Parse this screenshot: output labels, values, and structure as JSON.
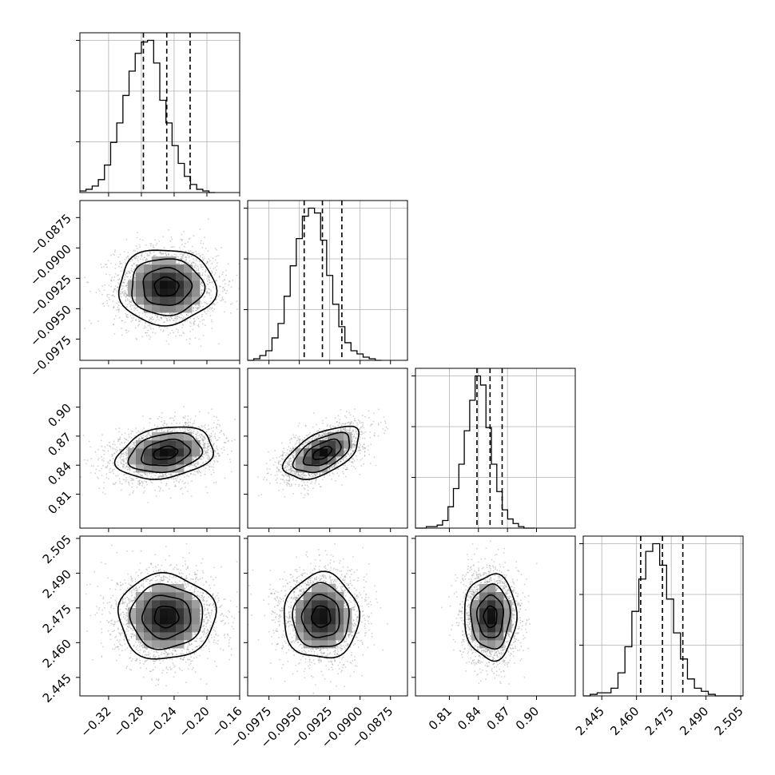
{
  "chart_data": {
    "type": "corner",
    "title": "",
    "parameters": [
      {
        "id": "p0",
        "label": "",
        "range": [
          -0.355,
          -0.16
        ],
        "ticks": [
          -0.32,
          -0.28,
          -0.24,
          -0.2,
          -0.16
        ],
        "tick_labels": [
          "−0.32",
          "−0.28",
          "−0.24",
          "−0.20",
          "−0.16"
        ],
        "quantiles": [
          -0.2775,
          -0.249,
          -0.2205
        ]
      },
      {
        "id": "p1",
        "label": "",
        "range": [
          -0.09925,
          -0.0861
        ],
        "ticks": [
          -0.0975,
          -0.095,
          -0.0925,
          -0.09,
          -0.0875
        ],
        "tick_labels": [
          "−0.0975",
          "−0.0950",
          "−0.0925",
          "−0.0900",
          "−0.0875"
        ],
        "quantiles": [
          -0.0946,
          -0.0931,
          -0.0915
        ]
      },
      {
        "id": "p2",
        "label": "",
        "range": [
          0.775,
          0.94
        ],
        "ticks": [
          0.81,
          0.84,
          0.87,
          0.9
        ],
        "tick_labels": [
          "0.81",
          "0.84",
          "0.87",
          "0.90"
        ],
        "quantiles": [
          0.8385,
          0.852,
          0.8645
        ]
      },
      {
        "id": "p3",
        "label": "",
        "range": [
          2.437,
          2.506
        ],
        "ticks": [
          2.445,
          2.46,
          2.475,
          2.49,
          2.505
        ],
        "tick_labels": [
          "2.445",
          "2.460",
          "2.475",
          "2.490",
          "2.505"
        ],
        "quantiles": [
          2.4618,
          2.4712,
          2.48
        ]
      }
    ],
    "histograms": [
      {
        "param": "p0",
        "bin_start": -0.355,
        "bin_width": 0.0075,
        "counts": [
          1,
          2,
          4,
          8,
          17,
          31,
          43,
          60,
          75,
          86,
          93,
          94,
          80,
          57,
          43,
          29,
          18,
          10,
          5,
          2,
          1,
          0
        ]
      },
      {
        "param": "p1",
        "bin_start": -0.09925,
        "bin_width": 0.0005,
        "counts": [
          0,
          1,
          3,
          6,
          14,
          23,
          40,
          59,
          76,
          90,
          95,
          92,
          75,
          53,
          35,
          21,
          11,
          6,
          4,
          2,
          1,
          0
        ]
      },
      {
        "param": "p2",
        "bin_start": 0.775,
        "bin_width": 0.0056,
        "counts": [
          0,
          0,
          1,
          1,
          2,
          5,
          14,
          26,
          42,
          64,
          84,
          100,
          94,
          66,
          42,
          24,
          12,
          6,
          3,
          1,
          0,
          0
        ]
      },
      {
        "param": "p3",
        "bin_start": 2.437,
        "bin_width": 0.003,
        "counts": [
          0,
          1,
          2,
          2,
          5,
          15,
          32,
          55,
          76,
          94,
          99,
          85,
          63,
          41,
          24,
          11,
          5,
          3,
          1,
          0,
          0,
          0,
          0
        ]
      }
    ],
    "pairs": [
      {
        "x": "p0",
        "y": "p1",
        "center": [
          -0.2495,
          -0.0932
        ],
        "sigma": [
          0.0295,
          0.00155
        ],
        "rho": 0.0
      },
      {
        "x": "p0",
        "y": "p2",
        "center": [
          -0.2505,
          0.8525
        ],
        "sigma": [
          0.0295,
          0.0135
        ],
        "rho": 0.25
      },
      {
        "x": "p1",
        "y": "p2",
        "center": [
          -0.0931,
          0.8525
        ],
        "sigma": [
          0.00155,
          0.0135
        ],
        "rho": 0.55
      },
      {
        "x": "p0",
        "y": "p3",
        "center": [
          -0.2495,
          2.4712
        ],
        "sigma": [
          0.0295,
          0.0092
        ],
        "rho": 0.0
      },
      {
        "x": "p1",
        "y": "p3",
        "center": [
          -0.0932,
          2.4712
        ],
        "sigma": [
          0.00155,
          0.0092
        ],
        "rho": 0.0
      },
      {
        "x": "p2",
        "y": "p3",
        "center": [
          0.8525,
          2.4712
        ],
        "sigma": [
          0.0135,
          0.0092
        ],
        "rho": 0.0
      }
    ],
    "contour_sigmas": [
      0.5,
      1.0,
      1.5,
      2.0
    ],
    "grid": true,
    "colors": {
      "line": "#000000",
      "grid": "#b0b0b0",
      "samples": "#9a9a9a",
      "density": "#000000"
    }
  }
}
